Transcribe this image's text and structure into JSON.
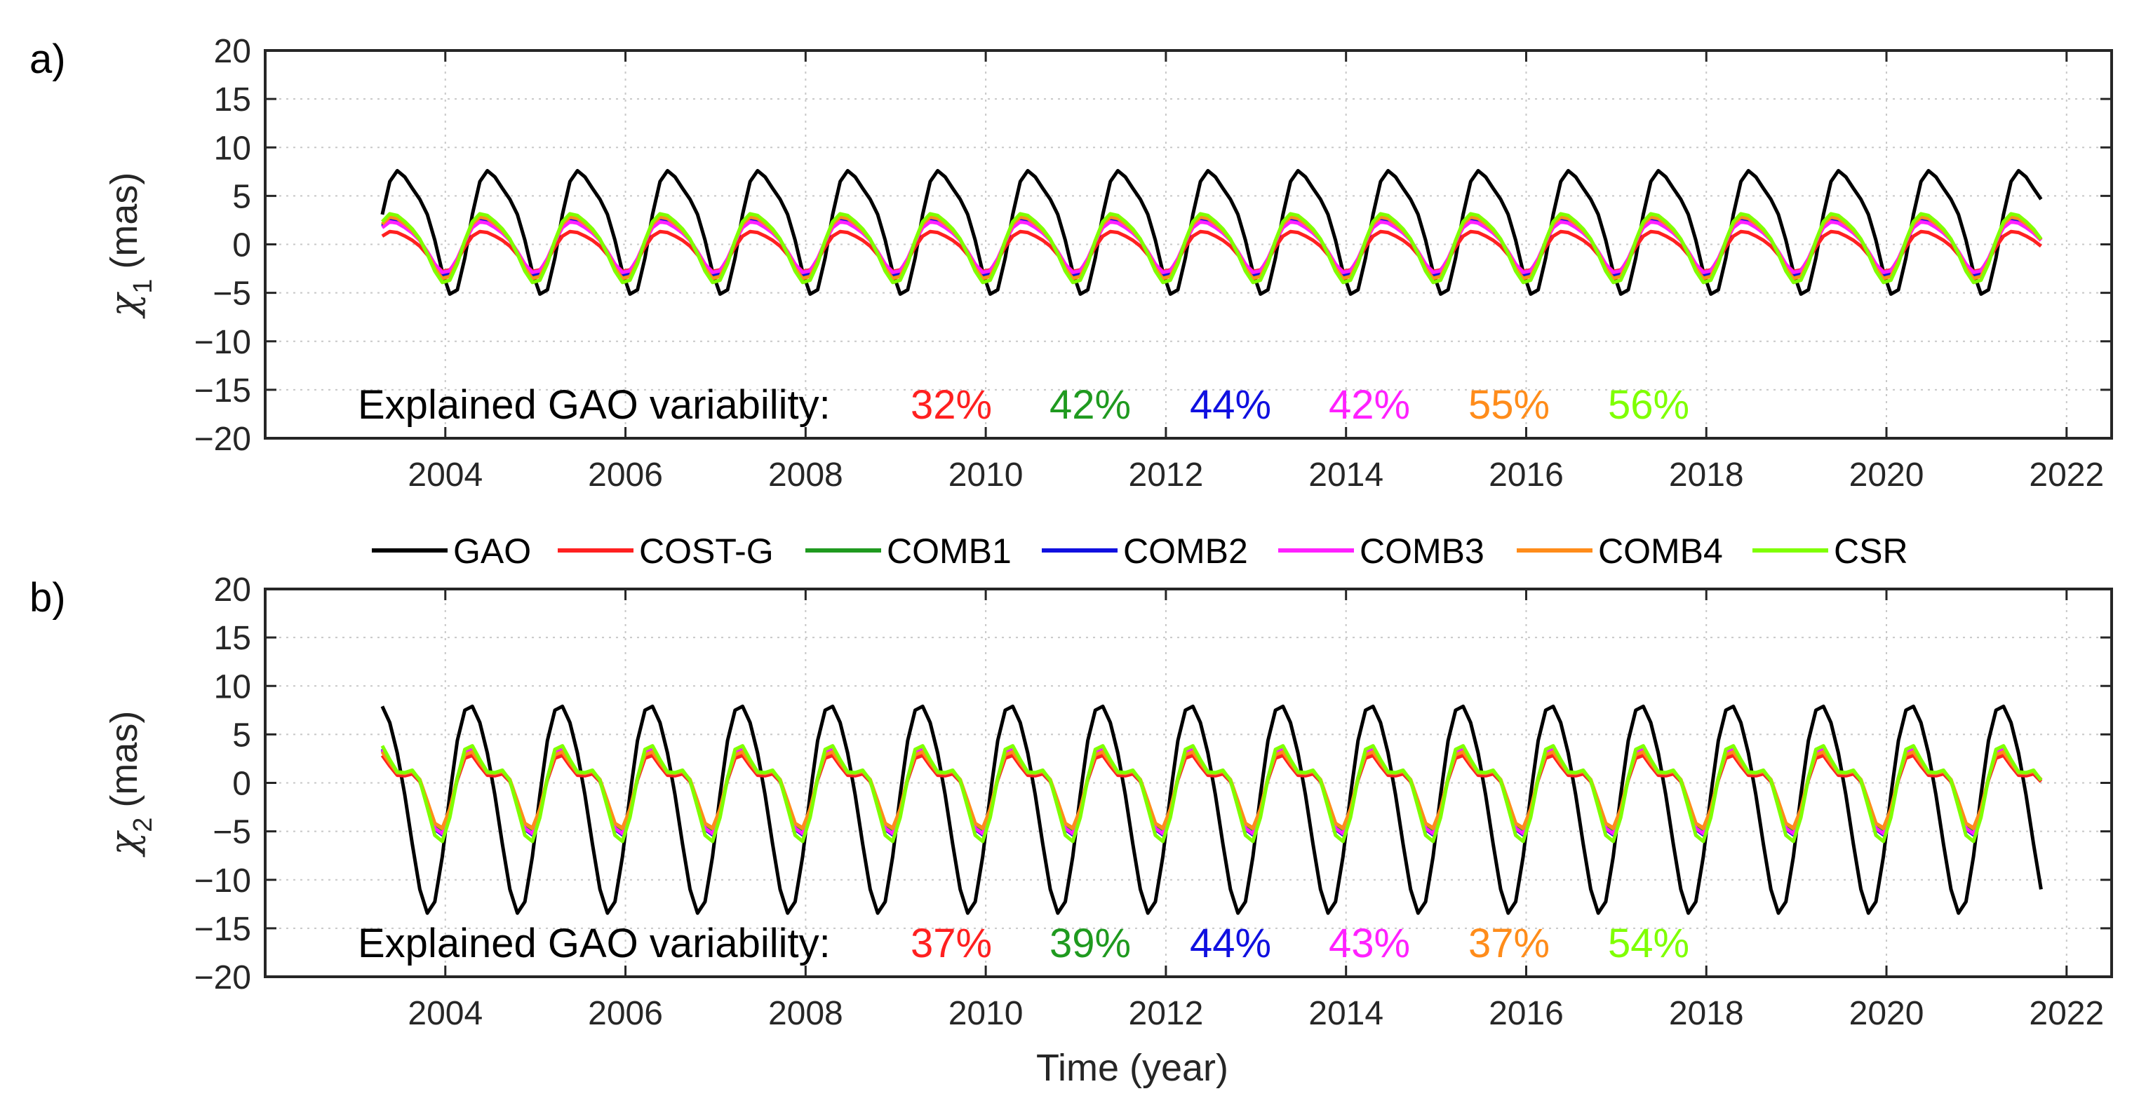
{
  "colors": {
    "GAO": "#000000",
    "COST-G": "#ff2020",
    "COMB1": "#1f9a1f",
    "COMB2": "#1010e0",
    "COMB3": "#ff20ff",
    "COMB4": "#ff8c1a",
    "CSR": "#7fff00"
  },
  "legend": [
    "GAO",
    "COST-G",
    "COMB1",
    "COMB2",
    "COMB3",
    "COMB4",
    "CSR"
  ],
  "chart_data": [
    {
      "type": "line",
      "panel_label": "a)",
      "ylabel_symbol": "χ",
      "ylabel_sub": "1",
      "ylabel_unit": "(mas)",
      "xlabel": "",
      "xlim": [
        2002,
        2022.5
      ],
      "ylim": [
        -20,
        20
      ],
      "xticks": [
        2004,
        2006,
        2008,
        2010,
        2012,
        2014,
        2016,
        2018,
        2020,
        2022
      ],
      "xtick_labels": [
        "2004",
        "2006",
        "2008",
        "2010",
        "2012",
        "2014",
        "2016",
        "2018",
        "2020",
        "2022"
      ],
      "yticks": [
        20,
        15,
        10,
        5,
        0,
        -5,
        -10,
        -15,
        -20
      ],
      "ytick_labels": [
        "20",
        "15",
        "10",
        "5",
        "0",
        "−5",
        "−10",
        "−15",
        "−20"
      ],
      "grid": true,
      "t_start": 2003.3,
      "t_end": 2021.7,
      "series": [
        {
          "name": "GAO",
          "mean": 2.0,
          "amp": 6.8,
          "phase": 0.3,
          "harm2": 0.25
        },
        {
          "name": "COST-G",
          "mean": -0.5,
          "amp": 2.2,
          "phase": 0.22,
          "harm2": 0.2
        },
        {
          "name": "COMB1",
          "mean": 0.0,
          "amp": 3.2,
          "phase": 0.22,
          "harm2": 0.2
        },
        {
          "name": "COMB2",
          "mean": 0.0,
          "amp": 3.0,
          "phase": 0.22,
          "harm2": 0.2
        },
        {
          "name": "COMB3",
          "mean": 0.0,
          "amp": 2.8,
          "phase": 0.22,
          "harm2": 0.2
        },
        {
          "name": "COMB4",
          "mean": 0.0,
          "amp": 3.4,
          "phase": 0.22,
          "harm2": 0.2
        },
        {
          "name": "CSR",
          "mean": 0.0,
          "amp": 3.8,
          "phase": 0.22,
          "harm2": 0.2
        }
      ],
      "explained_label": "Explained GAO variability:",
      "explained": [
        "32%",
        "42%",
        "44%",
        "42%",
        "55%",
        "56%"
      ]
    },
    {
      "type": "line",
      "panel_label": "b)",
      "ylabel_symbol": "χ",
      "ylabel_sub": "2",
      "ylabel_unit": "(mas)",
      "xlabel": "Time (year)",
      "xlim": [
        2002,
        2022.5
      ],
      "ylim": [
        -20,
        20
      ],
      "xticks": [
        2004,
        2006,
        2008,
        2010,
        2012,
        2014,
        2016,
        2018,
        2020,
        2022
      ],
      "xtick_labels": [
        "2004",
        "2006",
        "2008",
        "2010",
        "2012",
        "2014",
        "2016",
        "2018",
        "2020",
        "2022"
      ],
      "yticks": [
        20,
        15,
        10,
        5,
        0,
        -5,
        -10,
        -15,
        -20
      ],
      "ytick_labels": [
        "20",
        "15",
        "10",
        "5",
        "0",
        "−5",
        "−10",
        "−15",
        "−20"
      ],
      "grid": true,
      "t_start": 2003.3,
      "t_end": 2021.7,
      "series": [
        {
          "name": "GAO",
          "mean": -2.0,
          "amp": 11.2,
          "phase": 0.05,
          "harm2": 0.1
        },
        {
          "name": "COST-G",
          "mean": -0.3,
          "amp": 3.8,
          "phase": 0.15,
          "harm2": 0.55
        },
        {
          "name": "COMB1",
          "mean": -0.2,
          "amp": 4.3,
          "phase": 0.15,
          "harm2": 0.55
        },
        {
          "name": "COMB2",
          "mean": -0.2,
          "amp": 4.5,
          "phase": 0.15,
          "harm2": 0.55
        },
        {
          "name": "COMB3",
          "mean": -0.2,
          "amp": 4.4,
          "phase": 0.15,
          "harm2": 0.55
        },
        {
          "name": "COMB4",
          "mean": -0.1,
          "amp": 4.0,
          "phase": 0.15,
          "harm2": 0.55
        },
        {
          "name": "CSR",
          "mean": -0.3,
          "amp": 5.0,
          "phase": 0.15,
          "harm2": 0.55
        }
      ],
      "explained_label": "Explained GAO variability:",
      "explained": [
        "37%",
        "39%",
        "44%",
        "43%",
        "37%",
        "54%"
      ]
    }
  ]
}
